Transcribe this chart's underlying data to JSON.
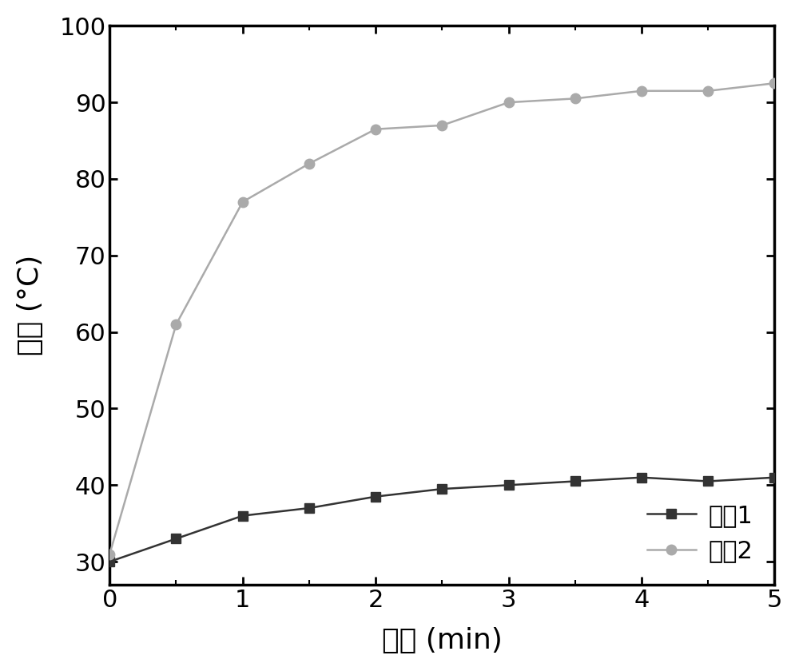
{
  "curve1_x": [
    0,
    0.5,
    1,
    1.5,
    2,
    2.5,
    3,
    3.5,
    4,
    4.5,
    5
  ],
  "curve1_y": [
    30,
    33,
    36,
    37,
    38.5,
    39.5,
    40,
    40.5,
    41,
    40.5,
    41
  ],
  "curve2_x": [
    0,
    0.5,
    1,
    1.5,
    2,
    2.5,
    3,
    3.5,
    4,
    4.5,
    5
  ],
  "curve2_y": [
    31,
    61,
    77,
    82,
    86.5,
    87,
    90,
    90.5,
    91.5,
    91.5,
    92.5
  ],
  "curve1_color": "#333333",
  "curve2_color": "#aaaaaa",
  "curve1_label": "曲线1",
  "curve2_label": "曲线2",
  "xlabel": "时间 (min)",
  "ylabel": "温度 (°C)",
  "xlim": [
    0,
    5
  ],
  "ylim": [
    27,
    100
  ],
  "yticks": [
    30,
    40,
    50,
    60,
    70,
    80,
    90,
    100
  ],
  "xticks_major": [
    0,
    1,
    2,
    3,
    4,
    5
  ],
  "xticks_minor": [
    0.5,
    1.5,
    2.5,
    3.5,
    4.5
  ],
  "background_color": "#ffffff",
  "marker1": "s",
  "marker2": "o",
  "markersize": 9,
  "linewidth": 1.8,
  "spine_linewidth": 2.5,
  "tick_fontsize": 22,
  "label_fontsize": 26,
  "legend_fontsize": 22
}
